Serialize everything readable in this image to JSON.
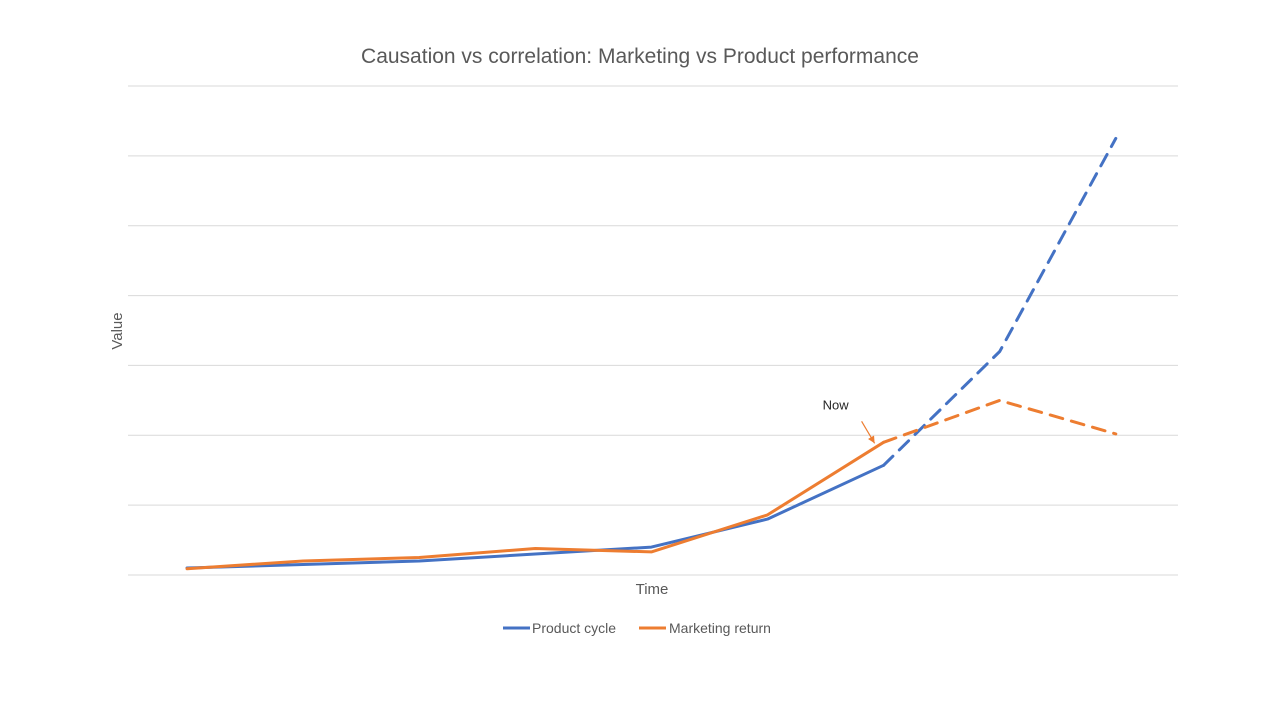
{
  "chart_data": {
    "type": "line",
    "title": "Causation vs correlation: Marketing vs Product performance",
    "xlabel": "Time",
    "ylabel": "Value",
    "x": [
      1,
      2,
      3,
      4,
      5,
      6,
      7,
      8,
      9
    ],
    "ylim": [
      0,
      7
    ],
    "grid": true,
    "legend_position": "bottom",
    "series": [
      {
        "name": "Product cycle",
        "color": "#4472C4",
        "values": [
          0.1,
          0.15,
          0.2,
          0.3,
          0.4,
          0.8,
          1.57,
          3.2,
          6.25
        ],
        "dashed_from_index": 6
      },
      {
        "name": "Marketing return",
        "color": "#ED7D31",
        "values": [
          0.09,
          0.2,
          0.25,
          0.38,
          0.33,
          0.86,
          1.9,
          2.5,
          2.02
        ],
        "dashed_from_index": 6
      }
    ],
    "annotations": [
      {
        "text": "Now",
        "x": 7,
        "color": "#ED7D31"
      }
    ]
  }
}
